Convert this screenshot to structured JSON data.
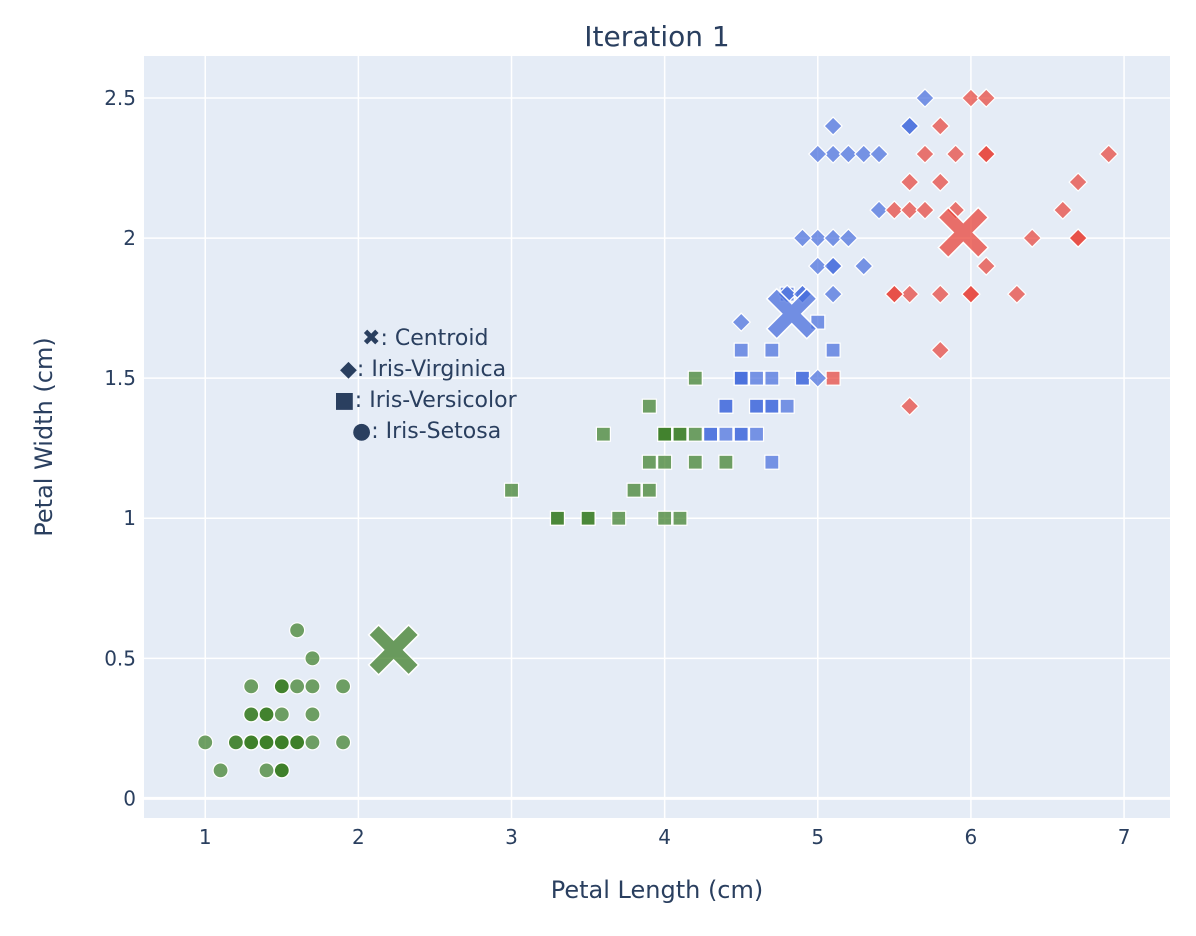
{
  "chart_data": {
    "type": "scatter",
    "title": "Iteration 1",
    "xlabel": "Petal Length (cm)",
    "ylabel": "Petal Width (cm)",
    "xlim": [
      0.6,
      7.3
    ],
    "ylim": [
      -0.07,
      2.65
    ],
    "grid": true,
    "xticks": [
      1,
      2,
      3,
      4,
      5,
      6,
      7
    ],
    "xtick_labels": [
      "1",
      "2",
      "3",
      "4",
      "5",
      "6",
      "7"
    ],
    "yticks": [
      0,
      0.5,
      1,
      1.5,
      2,
      2.5
    ],
    "ytick_labels": [
      "0",
      "0.5",
      "1",
      "1.5",
      "2",
      "2.5"
    ],
    "colors": {
      "plot_bg": "#e5ecf6",
      "green": "#3f7f2a",
      "blue": "#4a6fdc",
      "red": "#e8443a"
    },
    "legend": {
      "placement": "center-left",
      "entries": [
        {
          "symbol": "✖",
          "text": ": Centroid"
        },
        {
          "symbol": "◆",
          "text": ": Iris-Virginica"
        },
        {
          "symbol": "■",
          "text": ": Iris-Versicolor"
        },
        {
          "symbol": "●",
          "text": ": Iris-Setosa"
        }
      ]
    },
    "centroids": [
      {
        "cluster": "green",
        "x": 2.23,
        "y": 0.53
      },
      {
        "cluster": "blue",
        "x": 4.83,
        "y": 1.73
      },
      {
        "cluster": "red",
        "x": 5.95,
        "y": 2.02
      }
    ],
    "series": [
      {
        "species": "Iris-Setosa",
        "marker": "circle",
        "cluster": "green",
        "points": [
          [
            1.4,
            0.2
          ],
          [
            1.4,
            0.2
          ],
          [
            1.3,
            0.2
          ],
          [
            1.5,
            0.2
          ],
          [
            1.4,
            0.2
          ],
          [
            1.7,
            0.4
          ],
          [
            1.4,
            0.3
          ],
          [
            1.5,
            0.2
          ],
          [
            1.4,
            0.2
          ],
          [
            1.5,
            0.1
          ],
          [
            1.5,
            0.2
          ],
          [
            1.6,
            0.2
          ],
          [
            1.4,
            0.1
          ],
          [
            1.1,
            0.1
          ],
          [
            1.2,
            0.2
          ],
          [
            1.5,
            0.4
          ],
          [
            1.3,
            0.4
          ],
          [
            1.4,
            0.3
          ],
          [
            1.7,
            0.3
          ],
          [
            1.5,
            0.3
          ],
          [
            1.7,
            0.2
          ],
          [
            1.5,
            0.4
          ],
          [
            1.0,
            0.2
          ],
          [
            1.7,
            0.5
          ],
          [
            1.9,
            0.2
          ],
          [
            1.6,
            0.2
          ],
          [
            1.6,
            0.4
          ],
          [
            1.5,
            0.2
          ],
          [
            1.4,
            0.2
          ],
          [
            1.6,
            0.2
          ],
          [
            1.6,
            0.2
          ],
          [
            1.5,
            0.4
          ],
          [
            1.5,
            0.1
          ],
          [
            1.4,
            0.2
          ],
          [
            1.5,
            0.1
          ],
          [
            1.2,
            0.2
          ],
          [
            1.3,
            0.2
          ],
          [
            1.5,
            0.1
          ],
          [
            1.3,
            0.2
          ],
          [
            1.5,
            0.2
          ],
          [
            1.3,
            0.3
          ],
          [
            1.3,
            0.3
          ],
          [
            1.3,
            0.2
          ],
          [
            1.6,
            0.6
          ],
          [
            1.9,
            0.4
          ],
          [
            1.4,
            0.3
          ],
          [
            1.6,
            0.2
          ],
          [
            1.4,
            0.2
          ],
          [
            1.5,
            0.2
          ],
          [
            1.4,
            0.2
          ]
        ]
      },
      {
        "species": "Iris-Versicolor",
        "marker": "square",
        "cluster": "green",
        "points": [
          [
            3.3,
            1.0
          ],
          [
            3.9,
            1.4
          ],
          [
            3.5,
            1.0
          ],
          [
            3.6,
            1.3
          ],
          [
            4.0,
            1.3
          ],
          [
            3.9,
            1.1
          ],
          [
            3.0,
            1.1
          ],
          [
            3.8,
            1.1
          ],
          [
            4.0,
            1.2
          ],
          [
            4.0,
            1.0
          ],
          [
            3.3,
            1.0
          ],
          [
            4.1,
            1.3
          ],
          [
            3.5,
            1.0
          ],
          [
            4.4,
            1.2
          ],
          [
            4.1,
            1.0
          ],
          [
            4.0,
            1.3
          ],
          [
            4.2,
            1.2
          ],
          [
            4.2,
            1.3
          ],
          [
            3.9,
            1.2
          ],
          [
            4.0,
            1.3
          ],
          [
            3.7,
            1.0
          ],
          [
            4.1,
            1.3
          ],
          [
            4.2,
            1.5
          ]
        ]
      },
      {
        "species": "Iris-Versicolor",
        "marker": "square",
        "cluster": "blue",
        "points": [
          [
            4.7,
            1.4
          ],
          [
            4.5,
            1.5
          ],
          [
            4.9,
            1.5
          ],
          [
            4.6,
            1.5
          ],
          [
            4.5,
            1.3
          ],
          [
            4.7,
            1.6
          ],
          [
            4.6,
            1.3
          ],
          [
            4.7,
            1.4
          ],
          [
            4.4,
            1.4
          ],
          [
            4.5,
            1.5
          ],
          [
            4.6,
            1.4
          ],
          [
            4.8,
            1.8
          ],
          [
            4.3,
            1.3
          ],
          [
            4.7,
            1.2
          ],
          [
            4.4,
            1.4
          ],
          [
            4.8,
            1.4
          ],
          [
            5.0,
            1.7
          ],
          [
            4.5,
            1.5
          ],
          [
            5.1,
            1.6
          ],
          [
            4.5,
            1.6
          ],
          [
            4.7,
            1.5
          ],
          [
            4.4,
            1.3
          ],
          [
            4.5,
            1.3
          ],
          [
            4.9,
            1.5
          ],
          [
            4.6,
            1.4
          ],
          [
            4.3,
            1.3
          ]
        ]
      },
      {
        "species": "Iris-Versicolor",
        "marker": "square",
        "cluster": "red",
        "points": [
          [
            5.1,
            1.5
          ]
        ]
      },
      {
        "species": "Iris-Virginica",
        "marker": "diamond",
        "cluster": "blue",
        "points": [
          [
            5.1,
            1.9
          ],
          [
            5.6,
            2.4
          ],
          [
            5.0,
            2.0
          ],
          [
            5.1,
            2.0
          ],
          [
            5.3,
            1.9
          ],
          [
            4.9,
            2.0
          ],
          [
            5.0,
            1.5
          ],
          [
            4.9,
            1.8
          ],
          [
            5.1,
            1.8
          ],
          [
            4.8,
            1.8
          ],
          [
            4.9,
            1.8
          ],
          [
            5.6,
            2.4
          ],
          [
            5.1,
            2.3
          ],
          [
            4.5,
            1.7
          ],
          [
            5.1,
            2.4
          ],
          [
            5.2,
            2.3
          ],
          [
            5.0,
            1.9
          ],
          [
            5.2,
            2.0
          ],
          [
            5.4,
            2.1
          ],
          [
            5.3,
            2.3
          ],
          [
            5.4,
            2.3
          ],
          [
            5.7,
            2.5
          ],
          [
            5.1,
            1.9
          ],
          [
            5.0,
            2.3
          ]
        ]
      },
      {
        "species": "Iris-Virginica",
        "marker": "diamond",
        "cluster": "red",
        "points": [
          [
            6.0,
            2.5
          ],
          [
            5.9,
            2.1
          ],
          [
            5.6,
            1.8
          ],
          [
            5.8,
            2.2
          ],
          [
            6.6,
            2.1
          ],
          [
            6.3,
            1.8
          ],
          [
            5.8,
            1.8
          ],
          [
            6.1,
            2.5
          ],
          [
            5.5,
            2.1
          ],
          [
            5.5,
            1.8
          ],
          [
            5.8,
            2.4
          ],
          [
            6.7,
            2.2
          ],
          [
            6.9,
            2.3
          ],
          [
            5.7,
            2.3
          ],
          [
            6.7,
            2.0
          ],
          [
            6.0,
            1.8
          ],
          [
            5.6,
            2.1
          ],
          [
            5.8,
            1.6
          ],
          [
            6.1,
            1.9
          ],
          [
            6.4,
            2.0
          ],
          [
            5.6,
            2.2
          ],
          [
            6.1,
            2.3
          ],
          [
            5.6,
            1.4
          ],
          [
            6.1,
            2.3
          ],
          [
            5.5,
            1.8
          ],
          [
            5.9,
            2.3
          ],
          [
            6.7,
            2.0
          ],
          [
            5.7,
            2.1
          ],
          [
            6.0,
            1.8
          ]
        ]
      }
    ]
  }
}
